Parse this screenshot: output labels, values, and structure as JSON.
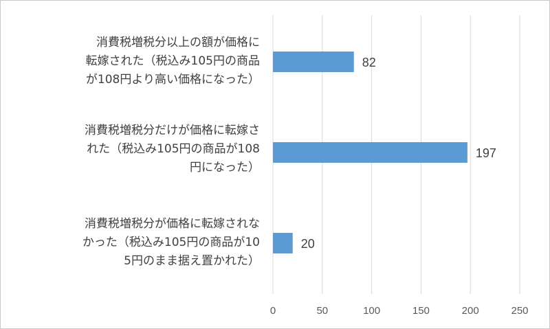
{
  "chart_data": {
    "type": "bar",
    "orientation": "horizontal",
    "categories": [
      "消費税増税分以上の額が価格に\n転嫁された（税込み105円の商品\nが108円より高い価格になった）",
      "消費税増税分だけが価格に転嫁さ\nれた（税込み105円の商品が108\n円になった）",
      "消費税増税分が価格に転嫁されな\nかった（税込み105円の商品が10\n5円のまま据え置かれた）"
    ],
    "values": [
      82,
      197,
      20
    ],
    "data_labels": [
      "82",
      "197",
      "20"
    ],
    "x_ticks": [
      "0",
      "50",
      "100",
      "150",
      "200",
      "250"
    ],
    "xlim": [
      0,
      250
    ],
    "grid": true,
    "bar_color": "#5b9bd5",
    "title": "",
    "xlabel": "",
    "ylabel": ""
  }
}
